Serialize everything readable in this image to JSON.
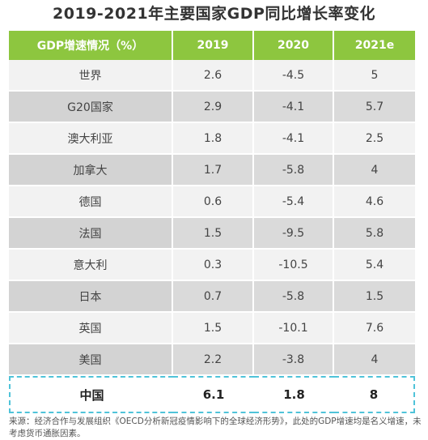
{
  "title": "2019-2021年主要国家GDP同比增长率变化",
  "chart_data": {
    "type": "table",
    "header": [
      "GDP增速情况（%）",
      "2019",
      "2020",
      "2021e"
    ],
    "rows": [
      {
        "name": "世界",
        "values": [
          "2.6",
          "-4.5",
          "5"
        ]
      },
      {
        "name": "G20国家",
        "values": [
          "2.9",
          "-4.1",
          "5.7"
        ]
      },
      {
        "name": "澳大利亚",
        "values": [
          "1.8",
          "-4.1",
          "2.5"
        ]
      },
      {
        "name": "加拿大",
        "values": [
          "1.7",
          "-5.8",
          "4"
        ]
      },
      {
        "name": "德国",
        "values": [
          "0.6",
          "-5.4",
          "4.6"
        ]
      },
      {
        "name": "法国",
        "values": [
          "1.5",
          "-9.5",
          "5.8"
        ]
      },
      {
        "name": "意大利",
        "values": [
          "0.3",
          "-10.5",
          "5.4"
        ]
      },
      {
        "name": "日本",
        "values": [
          "0.7",
          "-5.8",
          "1.5"
        ]
      },
      {
        "name": "英国",
        "values": [
          "1.5",
          "-10.1",
          "7.6"
        ]
      },
      {
        "name": "美国",
        "values": [
          "2.2",
          "-3.8",
          "4"
        ]
      }
    ],
    "highlight_row": {
      "name": "中国",
      "values": [
        "6.1",
        "1.8",
        "8"
      ]
    }
  },
  "source_note": "来源：经济合作与发展组织《OECD分析新冠疫情影响下的全球经济形势》，此处的GDP增速均是名义增速，未考虑货币通胀因素。",
  "colors": {
    "header": "#8dc63f",
    "row_light": "#f2f2f2",
    "row_dark": "#dadada",
    "highlight_border": "#4fc3d9"
  }
}
